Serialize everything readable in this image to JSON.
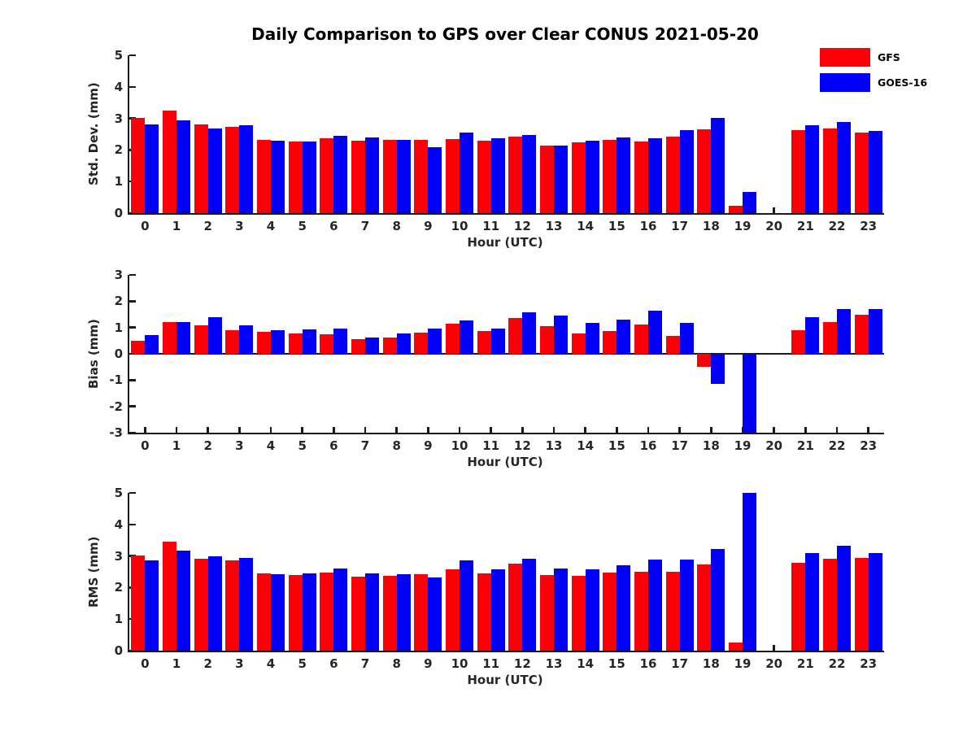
{
  "title": "Daily Comparison to GPS over Clear CONUS 2021-05-20",
  "legend": {
    "items": [
      {
        "label": "GFS",
        "color": "#fb0006"
      },
      {
        "label": "GOES-16",
        "color": "#0000f6"
      }
    ]
  },
  "chart_data": [
    {
      "type": "bar",
      "title": "Daily Comparison to GPS over Clear CONUS 2021-05-20",
      "ylabel": "Std. Dev. (mm)",
      "xlabel": "Hour (UTC)",
      "ylim": [
        0,
        5
      ],
      "yticks": [
        0,
        1,
        2,
        3,
        4,
        5
      ],
      "grid": false,
      "legend_position": "upper-right-outside",
      "categories": [
        "0",
        "1",
        "2",
        "3",
        "4",
        "5",
        "6",
        "7",
        "8",
        "9",
        "10",
        "11",
        "12",
        "13",
        "14",
        "15",
        "16",
        "17",
        "18",
        "19",
        "20",
        "21",
        "22",
        "23"
      ],
      "series": [
        {
          "name": "GFS",
          "color": "#fb0006",
          "values": [
            3.02,
            3.25,
            2.8,
            2.73,
            2.32,
            2.27,
            2.38,
            2.3,
            2.32,
            2.32,
            2.35,
            2.3,
            2.42,
            2.15,
            2.23,
            2.32,
            2.27,
            2.42,
            2.66,
            0.22,
            null,
            2.63,
            2.67,
            2.55
          ]
        },
        {
          "name": "GOES-16",
          "color": "#0000f6",
          "values": [
            2.82,
            2.95,
            2.68,
            2.78,
            2.3,
            2.27,
            2.46,
            2.4,
            2.33,
            2.1,
            2.56,
            2.36,
            2.47,
            2.15,
            2.29,
            2.39,
            2.36,
            2.64,
            3.02,
            0.67,
            null,
            2.78,
            2.88,
            2.6
          ]
        }
      ]
    },
    {
      "type": "bar",
      "ylabel": "Bias (mm)",
      "xlabel": "Hour (UTC)",
      "ylim": [
        -3,
        3
      ],
      "yticks": [
        -3,
        -2,
        -1,
        0,
        1,
        2,
        3
      ],
      "grid": false,
      "categories": [
        "0",
        "1",
        "2",
        "3",
        "4",
        "5",
        "6",
        "7",
        "8",
        "9",
        "10",
        "11",
        "12",
        "13",
        "14",
        "15",
        "16",
        "17",
        "18",
        "19",
        "20",
        "21",
        "22",
        "23"
      ],
      "series": [
        {
          "name": "GFS",
          "color": "#fb0006",
          "values": [
            0.5,
            1.2,
            1.07,
            0.9,
            0.84,
            0.78,
            0.73,
            0.55,
            0.62,
            0.8,
            1.13,
            0.88,
            1.37,
            1.06,
            0.76,
            0.88,
            1.12,
            0.67,
            -0.5,
            null,
            null,
            0.9,
            1.22,
            1.48
          ]
        },
        {
          "name": "GOES-16",
          "color": "#0000f6",
          "values": [
            0.72,
            1.22,
            1.38,
            1.07,
            0.9,
            0.92,
            0.95,
            0.62,
            0.76,
            0.96,
            1.26,
            0.95,
            1.58,
            1.44,
            1.17,
            1.29,
            1.65,
            1.16,
            -1.15,
            -3.0,
            null,
            1.38,
            1.7,
            1.7
          ]
        }
      ]
    },
    {
      "type": "bar",
      "ylabel": "RMS (mm)",
      "xlabel": "Hour (UTC)",
      "ylim": [
        0,
        5
      ],
      "yticks": [
        0,
        1,
        2,
        3,
        4,
        5
      ],
      "grid": false,
      "categories": [
        "0",
        "1",
        "2",
        "3",
        "4",
        "5",
        "6",
        "7",
        "8",
        "9",
        "10",
        "11",
        "12",
        "13",
        "14",
        "15",
        "16",
        "17",
        "18",
        "19",
        "20",
        "21",
        "22",
        "23"
      ],
      "series": [
        {
          "name": "GFS",
          "color": "#fb0006",
          "values": [
            3.02,
            3.45,
            2.92,
            2.86,
            2.44,
            2.4,
            2.47,
            2.35,
            2.37,
            2.42,
            2.57,
            2.46,
            2.77,
            2.39,
            2.38,
            2.47,
            2.51,
            2.49,
            2.72,
            0.25,
            null,
            2.78,
            2.92,
            2.93
          ]
        },
        {
          "name": "GOES-16",
          "color": "#0000f6",
          "values": [
            2.87,
            3.16,
            2.98,
            2.94,
            2.42,
            2.44,
            2.61,
            2.44,
            2.42,
            2.31,
            2.85,
            2.57,
            2.9,
            2.6,
            2.57,
            2.7,
            2.88,
            2.88,
            3.22,
            5.0,
            null,
            3.08,
            3.32,
            3.08
          ]
        }
      ]
    }
  ]
}
